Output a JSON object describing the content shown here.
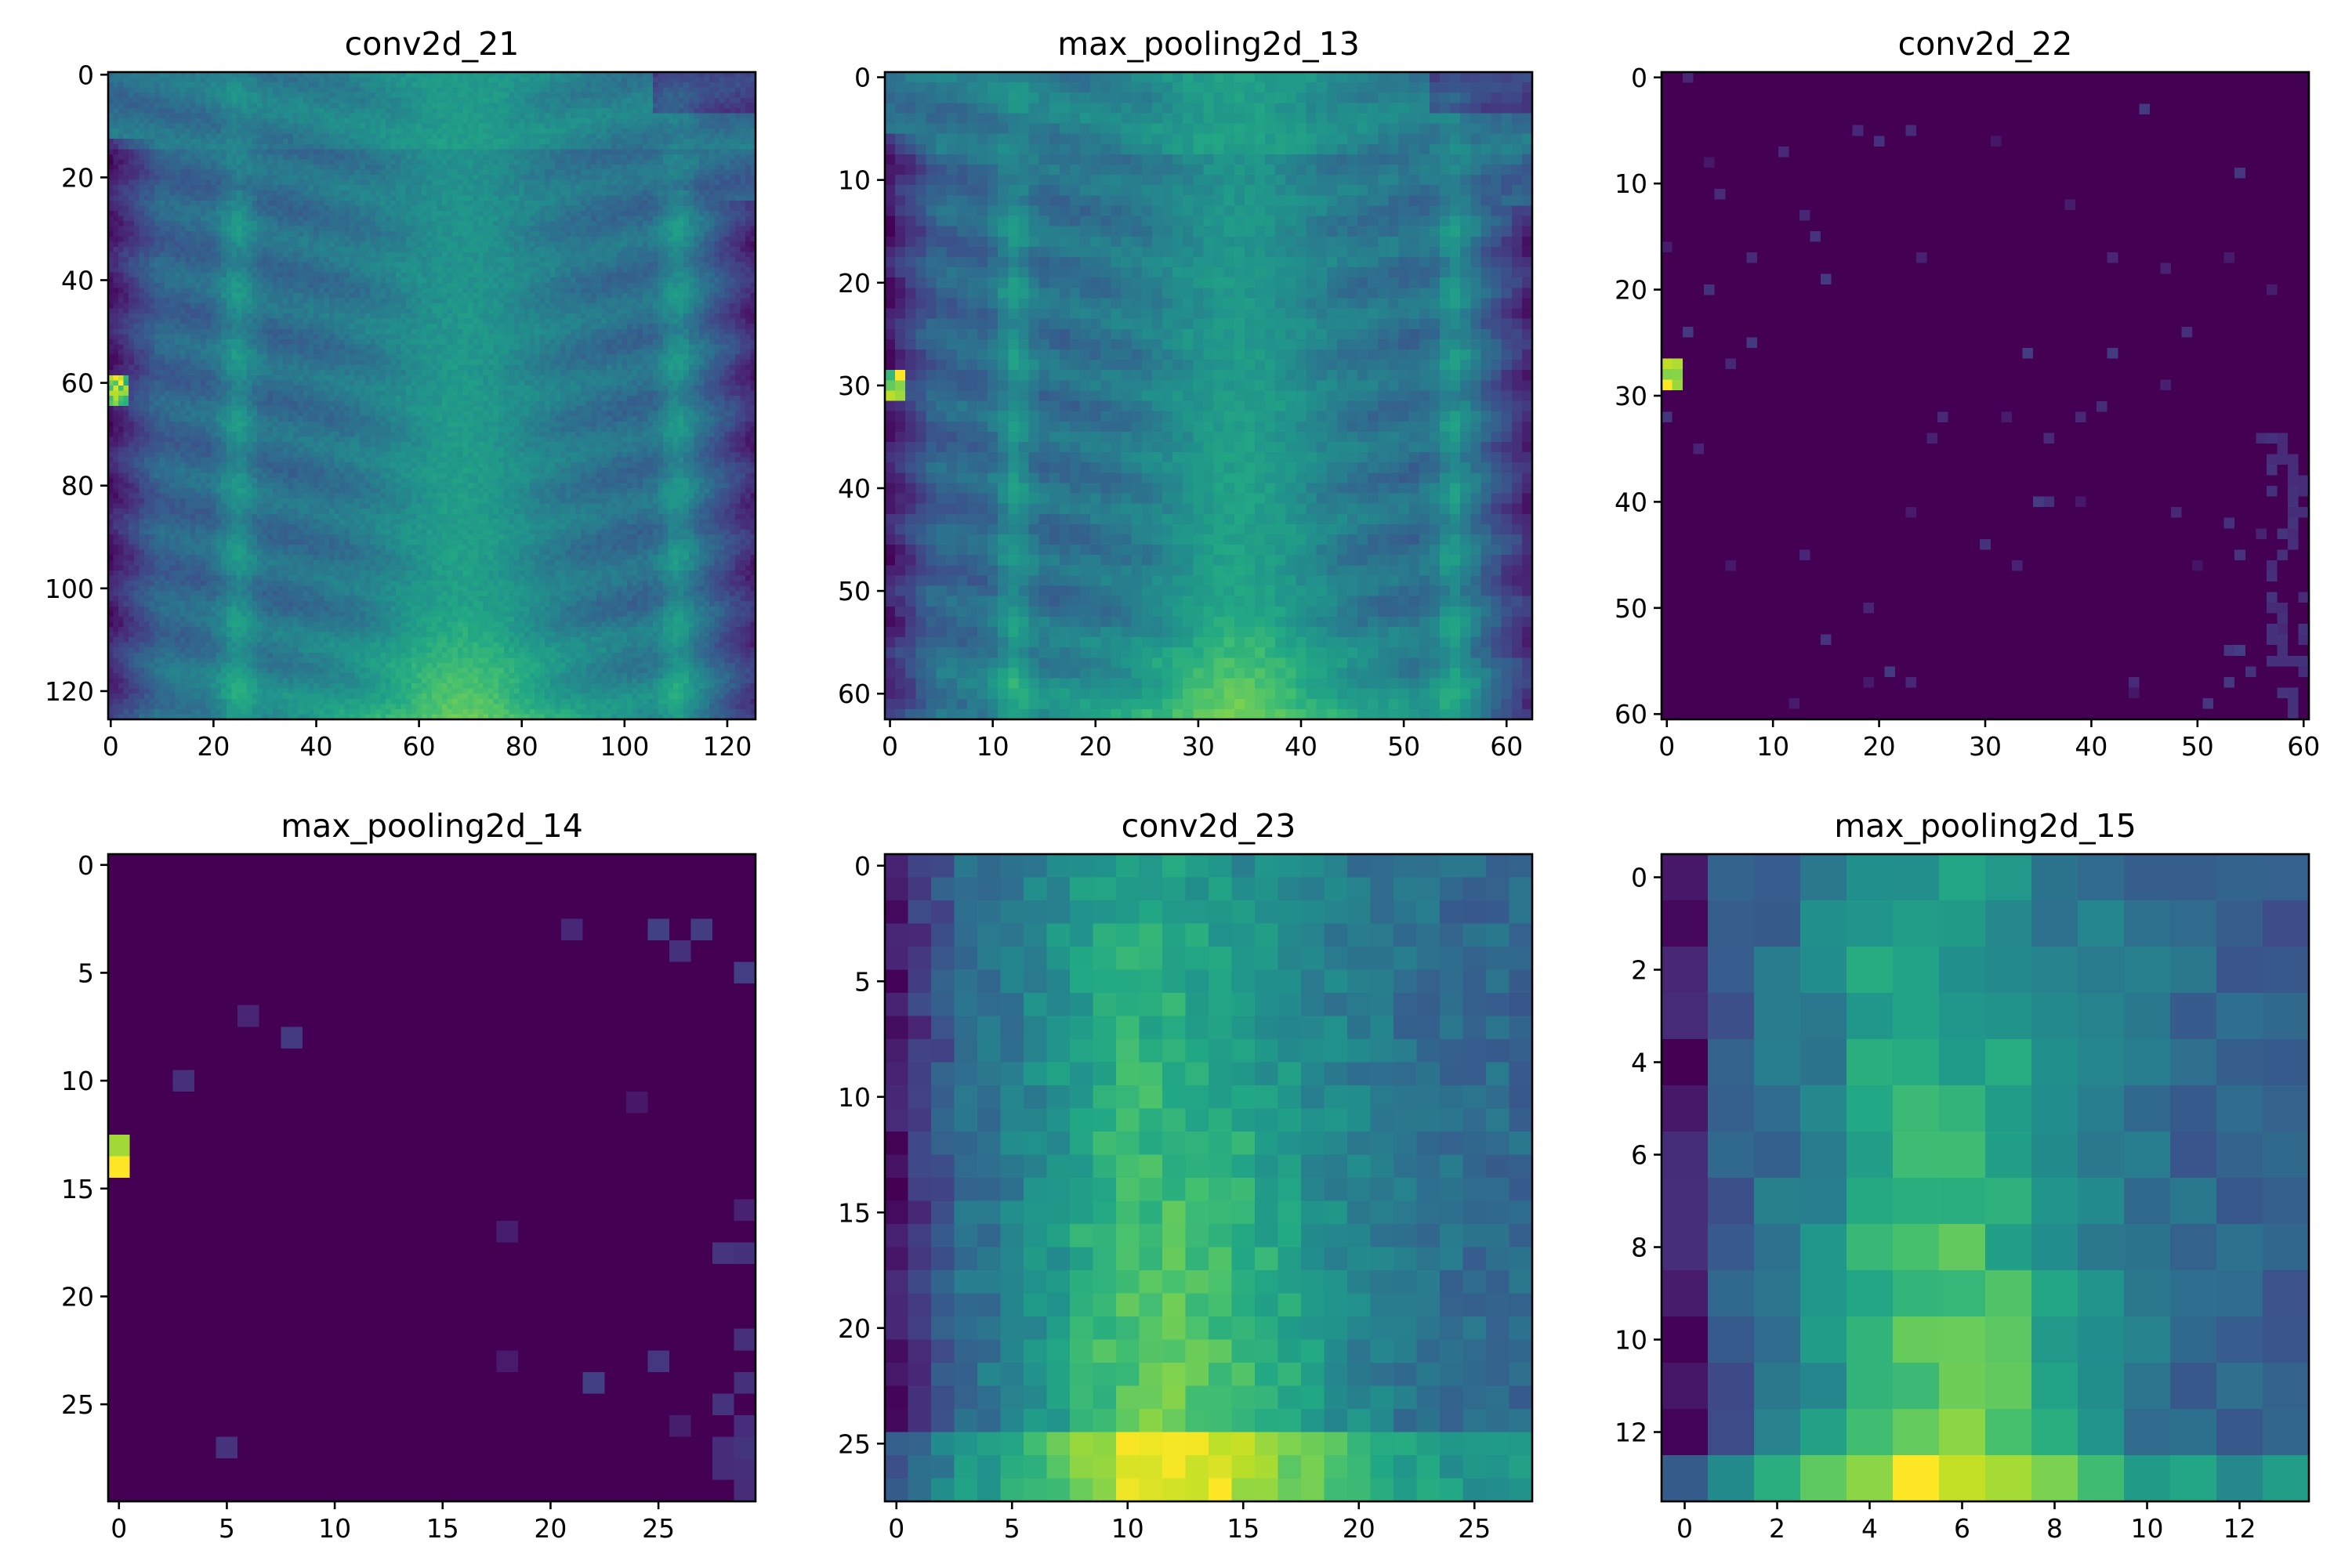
{
  "chart_data": [
    {
      "type": "heatmap",
      "title": "conv2d_21",
      "size": 126,
      "colormap": "viridis",
      "xticks": [
        0,
        20,
        40,
        60,
        80,
        100,
        120
      ],
      "yticks": [
        0,
        20,
        40,
        60,
        80,
        100,
        120
      ],
      "xlim": [
        -0.5,
        125.5
      ],
      "ylim": [
        125.5,
        -0.5
      ]
    },
    {
      "type": "heatmap",
      "title": "max_pooling2d_13",
      "size": 63,
      "colormap": "viridis",
      "xticks": [
        0,
        10,
        20,
        30,
        40,
        50,
        60
      ],
      "yticks": [
        0,
        10,
        20,
        30,
        40,
        50,
        60
      ],
      "xlim": [
        -0.5,
        62.5
      ],
      "ylim": [
        62.5,
        -0.5
      ]
    },
    {
      "type": "heatmap",
      "title": "conv2d_22",
      "size": 61,
      "colormap": "viridis",
      "xticks": [
        0,
        10,
        20,
        30,
        40,
        50,
        60
      ],
      "yticks": [
        0,
        10,
        20,
        30,
        40,
        50,
        60
      ],
      "xlim": [
        -0.5,
        60.5
      ],
      "ylim": [
        60.5,
        -0.5
      ]
    },
    {
      "type": "heatmap",
      "title": "max_pooling2d_14",
      "size": 30,
      "colormap": "viridis",
      "xticks": [
        0,
        5,
        10,
        15,
        20,
        25
      ],
      "yticks": [
        0,
        5,
        10,
        15,
        20,
        25
      ],
      "xlim": [
        -0.5,
        29.5
      ],
      "ylim": [
        29.5,
        -0.5
      ]
    },
    {
      "type": "heatmap",
      "title": "conv2d_23",
      "size": 28,
      "colormap": "viridis",
      "xticks": [
        0,
        5,
        10,
        15,
        20,
        25
      ],
      "yticks": [
        0,
        5,
        10,
        15,
        20,
        25
      ],
      "xlim": [
        -0.5,
        27.5
      ],
      "ylim": [
        27.5,
        -0.5
      ]
    },
    {
      "type": "heatmap",
      "title": "max_pooling2d_15",
      "size": 14,
      "colormap": "viridis",
      "xticks": [
        0,
        2,
        4,
        6,
        8,
        10,
        12
      ],
      "yticks": [
        0,
        2,
        4,
        6,
        8,
        10,
        12
      ],
      "xlim": [
        -0.5,
        13.5
      ],
      "ylim": [
        13.5,
        -0.5
      ]
    }
  ]
}
